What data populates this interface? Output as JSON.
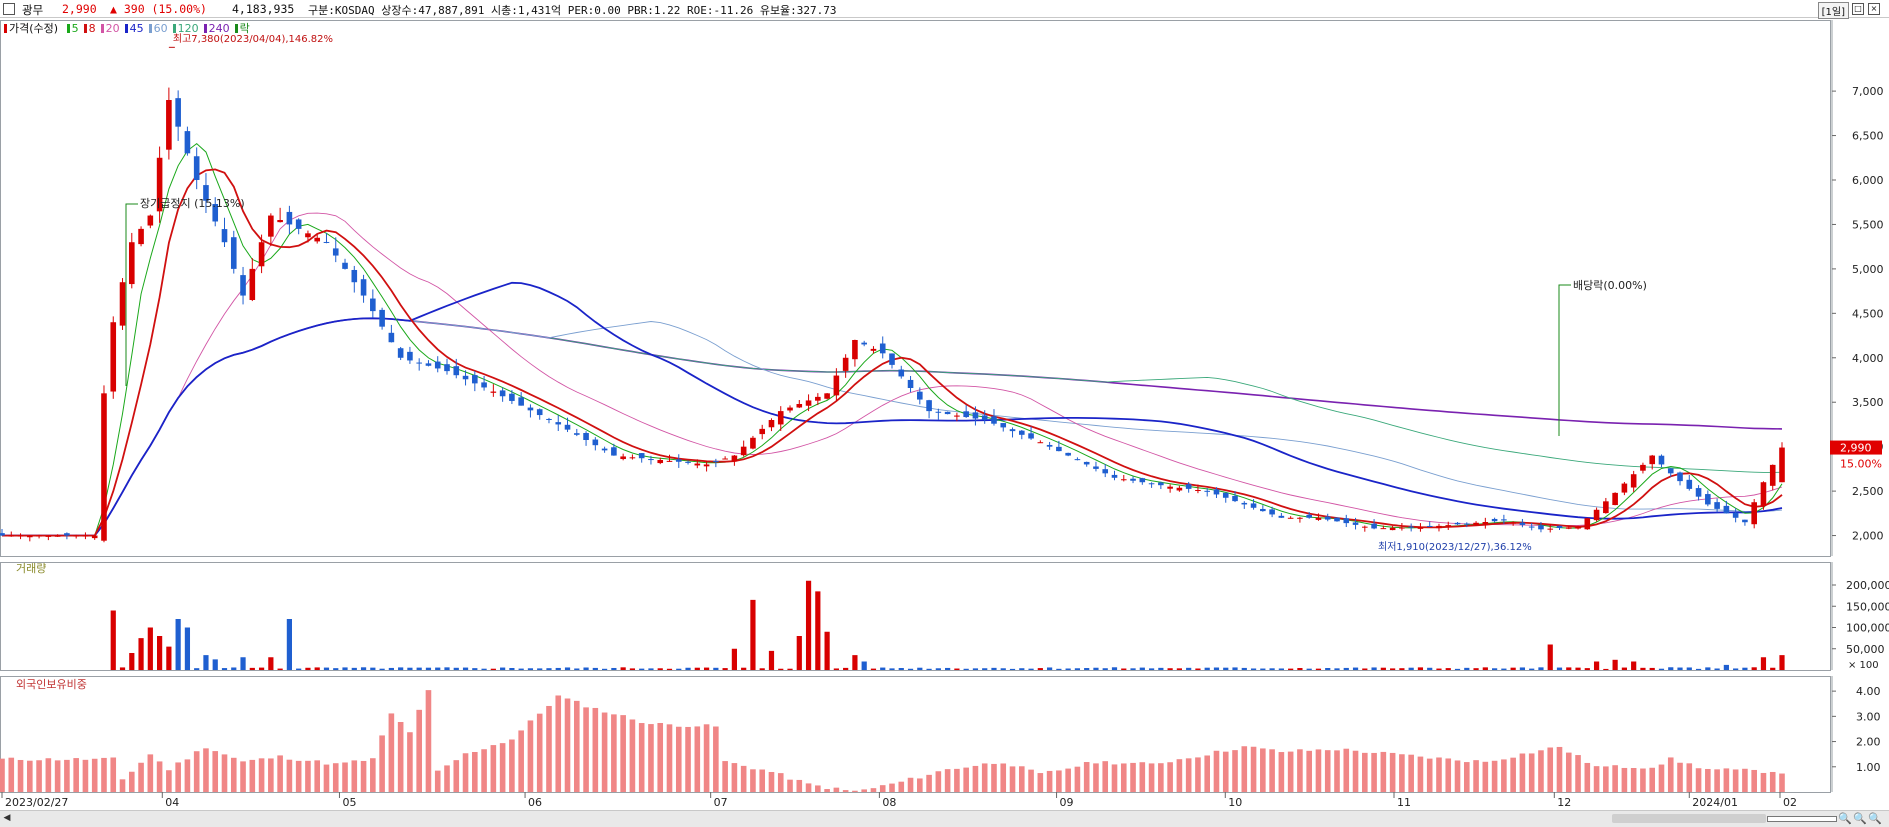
{
  "info": {
    "name": "광무",
    "price": "2,990",
    "change": "▲ 390 (15.00%)",
    "volume": "4,183,935",
    "details": "구분:KOSDAQ 상장수:47,887,891 시총:1,431억 PER:0.00 PBR:1.22 ROE:-11.26 유보율:327.73",
    "timeframe": "[1일]"
  },
  "colors": {
    "up": "#d80000",
    "down": "#1f5fd0",
    "ma5": "#1aa81a",
    "ma8": "#d01010",
    "ma20": "#d255a5",
    "ma45": "#1a24c8",
    "ma60": "#7a9fd0",
    "ma120": "#3aa87a",
    "ma240": "#7a22b0"
  },
  "price_legend": {
    "title": "가격(수정)",
    "items": [
      {
        "label": "5",
        "color": "#1aa81a"
      },
      {
        "label": "8",
        "color": "#d01010"
      },
      {
        "label": "20",
        "color": "#d255a5"
      },
      {
        "label": "45",
        "color": "#1a24c8"
      },
      {
        "label": "60",
        "color": "#7a9fd0"
      },
      {
        "label": "120",
        "color": "#3aa87a"
      },
      {
        "label": "240",
        "color": "#7a22b0"
      },
      {
        "label": "락",
        "color": "#1a8a1a"
      }
    ]
  },
  "volume_legend": "거래량",
  "foreign_legend": "외국인보유비중",
  "annotations": {
    "high": "최고7,380(2023/04/04),146.82%",
    "low": "최저1,910(2023/12/27),36.12%",
    "halt": "장기급정지 (15.13%)",
    "dividend": "배당락(0.00%)"
  },
  "current_label": {
    "price": "2,990",
    "pct": "15.00%"
  },
  "chart_data": [
    {
      "type": "candlestick",
      "panel": "price",
      "y_ticks": [
        2000,
        2500,
        3000,
        3500,
        4000,
        4500,
        5000,
        5500,
        6000,
        6500,
        7000
      ],
      "ylim": [
        1770,
        7800
      ],
      "x_ticks": [
        "2023/02/27",
        "04",
        "05",
        "06",
        "07",
        "08",
        "09",
        "10",
        "11",
        "12",
        "2024/01",
        "02"
      ],
      "anchors": [
        [
          0,
          2000
        ],
        [
          10,
          2000
        ],
        [
          11,
          3600
        ],
        [
          12,
          4400
        ],
        [
          14,
          5300
        ],
        [
          16,
          5600
        ],
        [
          18,
          6900
        ],
        [
          21,
          6000
        ],
        [
          24,
          5300
        ],
        [
          26,
          4700
        ],
        [
          29,
          5600
        ],
        [
          31,
          5500
        ],
        [
          35,
          5300
        ],
        [
          39,
          4700
        ],
        [
          43,
          4000
        ],
        [
          48,
          3850
        ],
        [
          53,
          3620
        ],
        [
          60,
          3250
        ],
        [
          66,
          2900
        ],
        [
          71,
          2850
        ],
        [
          76,
          2800
        ],
        [
          79,
          2900
        ],
        [
          84,
          3400
        ],
        [
          89,
          3600
        ],
        [
          92,
          4200
        ],
        [
          95,
          4050
        ],
        [
          100,
          3400
        ],
        [
          106,
          3300
        ],
        [
          112,
          3050
        ],
        [
          120,
          2650
        ],
        [
          126,
          2550
        ],
        [
          130,
          2500
        ],
        [
          134,
          2350
        ],
        [
          138,
          2200
        ],
        [
          142,
          2200
        ],
        [
          148,
          2080
        ],
        [
          154,
          2100
        ],
        [
          162,
          2170
        ],
        [
          166,
          2070
        ],
        [
          170,
          2100
        ],
        [
          174,
          2480
        ],
        [
          178,
          2900
        ],
        [
          180,
          2700
        ],
        [
          184,
          2350
        ],
        [
          188,
          2150
        ],
        [
          190,
          2600
        ],
        [
          192,
          2990
        ]
      ],
      "last": {
        "open": 2600,
        "high": 3050,
        "low": 2600,
        "close": 2990
      }
    },
    {
      "type": "bar",
      "panel": "volume",
      "name": "거래량",
      "y_ticks": [
        200000,
        150000,
        100000,
        50000
      ],
      "y_unit": "× 100",
      "ylim": [
        0,
        240000
      ],
      "spikes": [
        [
          12,
          140000
        ],
        [
          14,
          40000
        ],
        [
          15,
          75000
        ],
        [
          16,
          100000
        ],
        [
          17,
          80000
        ],
        [
          18,
          55000
        ],
        [
          19,
          120000
        ],
        [
          20,
          100000
        ],
        [
          22,
          35000
        ],
        [
          23,
          25000
        ],
        [
          26,
          30000
        ],
        [
          29,
          30000
        ],
        [
          31,
          120000
        ],
        [
          79,
          50000
        ],
        [
          81,
          165000
        ],
        [
          83,
          45000
        ],
        [
          86,
          80000
        ],
        [
          87,
          210000
        ],
        [
          88,
          185000
        ],
        [
          89,
          90000
        ],
        [
          92,
          35000
        ],
        [
          93,
          20000
        ],
        [
          167,
          60000
        ],
        [
          172,
          20000
        ],
        [
          174,
          24000
        ],
        [
          176,
          20000
        ],
        [
          186,
          12000
        ],
        [
          190,
          30000
        ],
        [
          192,
          35000
        ]
      ]
    },
    {
      "type": "bar",
      "panel": "foreign",
      "name": "외국인보유비중",
      "y_ticks": [
        1.0,
        2.0,
        3.0,
        4.0
      ],
      "ylim": [
        0,
        4.6
      ],
      "anchors": [
        [
          0,
          1.3
        ],
        [
          12,
          1.3
        ],
        [
          13,
          0.5
        ],
        [
          16,
          1.5
        ],
        [
          18,
          0.9
        ],
        [
          22,
          1.8
        ],
        [
          26,
          1.2
        ],
        [
          30,
          1.4
        ],
        [
          36,
          1.1
        ],
        [
          40,
          1.3
        ],
        [
          42,
          3.1
        ],
        [
          44,
          2.4
        ],
        [
          46,
          4.0
        ],
        [
          47,
          0.8
        ],
        [
          50,
          1.5
        ],
        [
          55,
          2.1
        ],
        [
          60,
          3.8
        ],
        [
          64,
          3.3
        ],
        [
          70,
          2.7
        ],
        [
          77,
          2.6
        ],
        [
          78,
          1.2
        ],
        [
          83,
          0.8
        ],
        [
          87,
          0.3
        ],
        [
          92,
          0.0
        ],
        [
          97,
          0.4
        ],
        [
          102,
          0.9
        ],
        [
          108,
          1.2
        ],
        [
          112,
          0.7
        ],
        [
          118,
          1.2
        ],
        [
          124,
          1.1
        ],
        [
          130,
          1.5
        ],
        [
          134,
          1.8
        ],
        [
          138,
          1.6
        ],
        [
          144,
          1.7
        ],
        [
          150,
          1.5
        ],
        [
          156,
          1.3
        ],
        [
          160,
          1.2
        ],
        [
          164,
          1.5
        ],
        [
          168,
          1.8
        ],
        [
          172,
          1.0
        ],
        [
          178,
          1.0
        ],
        [
          180,
          1.3
        ],
        [
          184,
          0.9
        ],
        [
          192,
          0.8
        ]
      ]
    }
  ]
}
